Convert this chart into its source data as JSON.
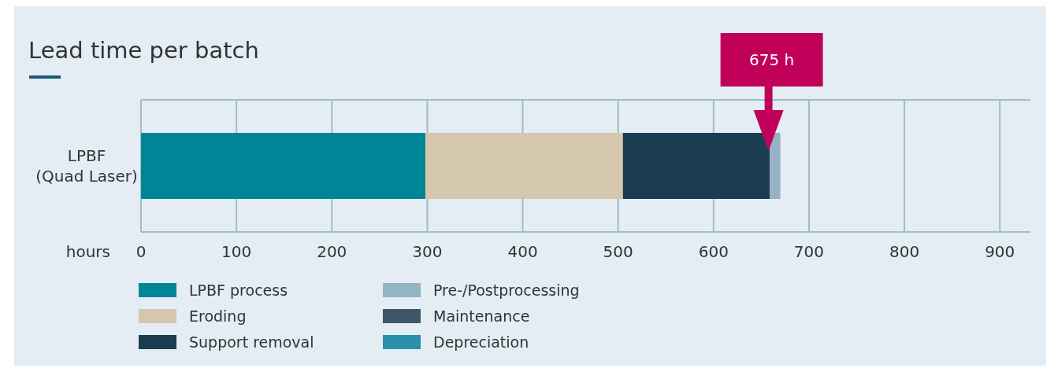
{
  "chart_data": {
    "type": "bar",
    "orientation": "horizontal",
    "stacked": true,
    "title": "Lead time per batch",
    "xlabel": "hours",
    "categories": [
      "LPBF (Quad Laser)"
    ],
    "series": [
      {
        "name": "LPBF process",
        "color": "#008597",
        "values": [
          298
        ]
      },
      {
        "name": "Eroding",
        "color": "#d4c7ad",
        "values": [
          207
        ]
      },
      {
        "name": "Support removal",
        "color": "#1b3d51",
        "values": [
          154
        ]
      },
      {
        "name": "Pre-/Postprocessing",
        "color": "#94b3c4",
        "values": [
          11
        ]
      },
      {
        "name": "Maintenance",
        "color": "#3e5568",
        "values": [
          0
        ]
      },
      {
        "name": "Depreciation",
        "color": "#2a8fad",
        "values": [
          0
        ]
      }
    ],
    "xlim": [
      0,
      932
    ],
    "xticks": [
      0,
      100,
      200,
      300,
      400,
      500,
      600,
      700,
      800,
      900
    ],
    "grid": "x",
    "legend": "bottom",
    "annotations": [
      "675 h"
    ]
  }
}
